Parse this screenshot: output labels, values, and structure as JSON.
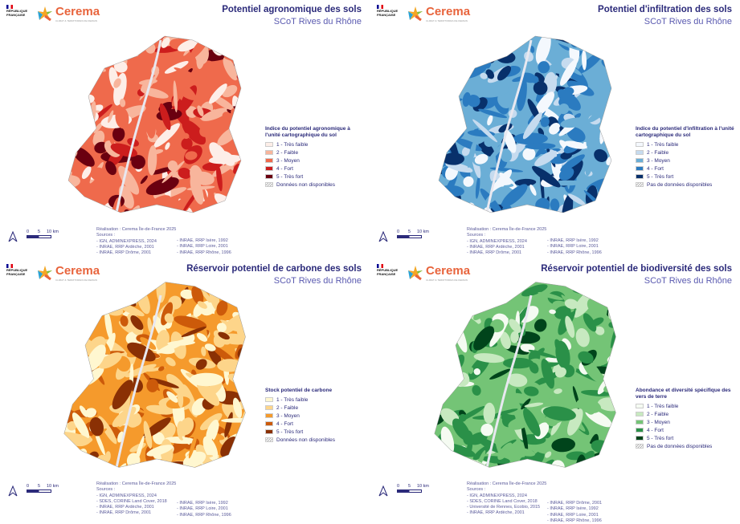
{
  "common": {
    "republique": "RÉPUBLIQUE FRANÇAISE",
    "logo_name": "Cerema",
    "logo_tagline": "CLIMAT & TERRITOIRES DE DEMAIN",
    "subtitle": "SCoT Rives du Rhône",
    "north": "north-arrow",
    "scale": [
      "0",
      "5",
      "10 km"
    ],
    "realisation": "Réalisation : Cerema Île-de-France 2025",
    "sources_label": "Sources :"
  },
  "panels": [
    {
      "title": "Potentiel agronomique des sols",
      "legend_title": "Indice du potentiel agronomique à l'unité cartographique du sol",
      "legend": [
        {
          "label": "1 - Très faible",
          "color": "#fdeee8"
        },
        {
          "label": "2 - Faible",
          "color": "#f8b59c"
        },
        {
          "label": "3 - Moyen",
          "color": "#ef6a4c"
        },
        {
          "label": "4 - Fort",
          "color": "#cc1d1d"
        },
        {
          "label": "5 - Très fort",
          "color": "#6a0010"
        }
      ],
      "nodata": "Données non disponibles",
      "sources_a": [
        "- IGN, ADMINEXPRESS, 2024",
        "- INRAE, RRP Ardèche, 2001",
        "- INRAE, RRP Drôme, 2001"
      ],
      "sources_b": [
        "- INRAE, RRP Isère, 1992",
        "- INRAE, RRP Loire, 2001",
        "- INRAE, RRP Rhône, 1996"
      ]
    },
    {
      "title": "Potentiel d'infiltration des sols",
      "legend_title": "Indice du potentiel d'infiltration à l'unité cartographique du sol",
      "legend": [
        {
          "label": "1 - Très faible",
          "color": "#f4f8fd"
        },
        {
          "label": "2 - Faible",
          "color": "#c6dbef"
        },
        {
          "label": "3 - Moyen",
          "color": "#6baed6"
        },
        {
          "label": "4 - Fort",
          "color": "#2b7bc0"
        },
        {
          "label": "5 - Très fort",
          "color": "#08306b"
        }
      ],
      "nodata": "Pas de données disponibles",
      "sources_a": [
        "- IGN, ADMINEXPRESS, 2024",
        "- INRAE, RRP Ardèche, 2001",
        "- INRAE, RRP Drôme, 2001"
      ],
      "sources_b": [
        "- INRAE, RRP Isère, 1992",
        "- INRAE, RRP Loire, 2001",
        "- INRAE, RRP Rhône, 1996"
      ]
    },
    {
      "title": "Réservoir potentiel de carbone des sols",
      "legend_title": "Stock potentiel de carbone",
      "legend": [
        {
          "label": "1 - Très faible",
          "color": "#fff7d0"
        },
        {
          "label": "2 - Faible",
          "color": "#fdd58a"
        },
        {
          "label": "3 - Moyen",
          "color": "#f59a2c"
        },
        {
          "label": "4 - Fort",
          "color": "#cc5a0a"
        },
        {
          "label": "5 - Très fort",
          "color": "#8a3004"
        }
      ],
      "nodata": "Données non disponibles",
      "sources_a": [
        "- IGN, ADMINEXPRESS, 2024",
        "- SDES, CORINE Land Cover, 2018",
        "- INRAE, RRP Ardèche, 2001",
        "- INRAE, RRP Drôme, 2001"
      ],
      "sources_b": [
        "- INRAE, RRP Isère, 1992",
        "- INRAE, RRP Loire, 2001",
        "- INRAE, RRP Rhône, 1996"
      ]
    },
    {
      "title": "Réservoir potentiel de biodiversité des sols",
      "legend_title": "Abondance et diversité spécifique des vers de terre",
      "legend": [
        {
          "label": "1 - Très faible",
          "color": "#f5fbf2"
        },
        {
          "label": "2 - Faible",
          "color": "#c7e9c0"
        },
        {
          "label": "3 - Moyen",
          "color": "#74c476"
        },
        {
          "label": "4 - Fort",
          "color": "#2a9048"
        },
        {
          "label": "5 - Très fort",
          "color": "#00441b"
        }
      ],
      "nodata": "Pas de données disponibles",
      "sources_a": [
        "- IGN, ADMINEXPRESS, 2024",
        "- SDES, CORINE Land Cover, 2018",
        "- Université de Rennes, Ecobio, 2015",
        "- INRAE, RRP Ardèche, 2001"
      ],
      "sources_b": [
        "- INRAE, RRP Drôme, 2001",
        "- INRAE, RRP Isère, 1992",
        "- INRAE, RRP Loire, 2001",
        "- INRAE, RRP Rhône, 1996"
      ]
    }
  ]
}
